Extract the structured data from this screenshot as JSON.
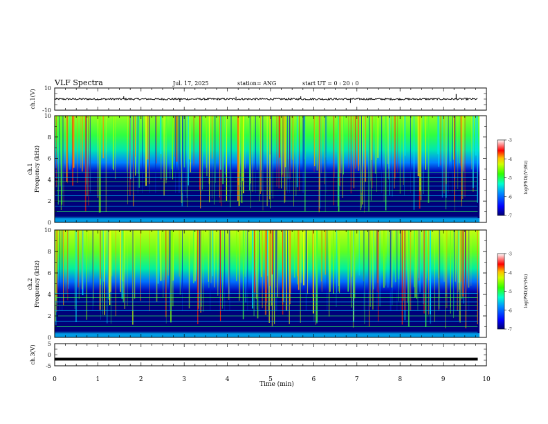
{
  "header": {
    "title": "VLF Spectra",
    "date": "Jul. 17, 2025",
    "station": "station= ANG",
    "start": "start UT =  0 : 20 : 0"
  },
  "colors": {
    "background": "#ffffff",
    "axis": "#000000",
    "trace": "#000000",
    "colormap": [
      "#00007a",
      "#0000ff",
      "#0080ff",
      "#00e0ff",
      "#00ff90",
      "#40ff00",
      "#c0ff00",
      "#ffff00",
      "#ff9000",
      "#ff0000",
      "#ffffff"
    ]
  },
  "chart_data": [
    {
      "panel": "ch1-waveform",
      "type": "line",
      "ylabel": "ch.1(V)",
      "ylim": [
        -10,
        10
      ],
      "ytick_labels": [
        "10",
        "-10"
      ],
      "xlim": [
        0,
        9.8
      ],
      "baseline": 0,
      "spike_times_min": [
        1.6,
        2.9,
        4.2,
        5.7,
        6.85,
        9.3
      ],
      "spike_values": [
        2.5,
        -2.5,
        2.0,
        2.5,
        -3.5,
        4.5
      ]
    },
    {
      "panel": "ch1-spectrogram",
      "type": "heatmap",
      "ylabel": "Frequency (kHz)",
      "channel_label": "ch.1",
      "ylim": [
        0,
        10
      ],
      "ytick_labels": [
        "10",
        "8",
        "6",
        "4",
        "2",
        "0"
      ],
      "xlim": [
        0,
        9.8
      ],
      "cutoff_kHz": 4.6,
      "line_frequencies_kHz": [
        0.5,
        1.0,
        1.5,
        2.0,
        2.5,
        3.0,
        3.4,
        3.8,
        4.2,
        4.7
      ],
      "colorbar": {
        "label": "log(PSD)(V²/Hz)",
        "range": [
          -7,
          -3
        ],
        "tick_labels": [
          "-3",
          "-4",
          "-5",
          "-6",
          "-7"
        ]
      }
    },
    {
      "panel": "ch2-spectrogram",
      "type": "heatmap",
      "ylabel": "Frequency (kHz)",
      "channel_label": "ch.2",
      "ylim": [
        0,
        10
      ],
      "ytick_labels": [
        "10",
        "8",
        "6",
        "4",
        "2",
        "0"
      ],
      "xlim": [
        0,
        9.8
      ],
      "cutoff_kHz": 4.2,
      "line_frequencies_kHz": [
        0.5,
        1.0,
        1.5,
        2.0,
        2.5,
        3.0,
        3.3,
        3.7,
        4.1
      ],
      "colorbar": {
        "label": "log(PSD)(V²/Hz)",
        "range": [
          -7,
          -3
        ],
        "tick_labels": [
          "-3",
          "-4",
          "-5",
          "-6",
          "-7"
        ]
      }
    },
    {
      "panel": "ch3-waveform",
      "type": "line",
      "ylabel": "ch.3(V)",
      "ylim": [
        -5,
        5
      ],
      "ytick_labels": [
        "5",
        "0",
        "-5"
      ],
      "xlim": [
        0,
        9.8
      ],
      "baseline": -2
    }
  ],
  "xaxis": {
    "label": "Time (min)",
    "range": [
      0,
      10
    ],
    "tick_labels": [
      "0",
      "1",
      "2",
      "3",
      "4",
      "5",
      "6",
      "7",
      "8",
      "9",
      "10"
    ]
  }
}
